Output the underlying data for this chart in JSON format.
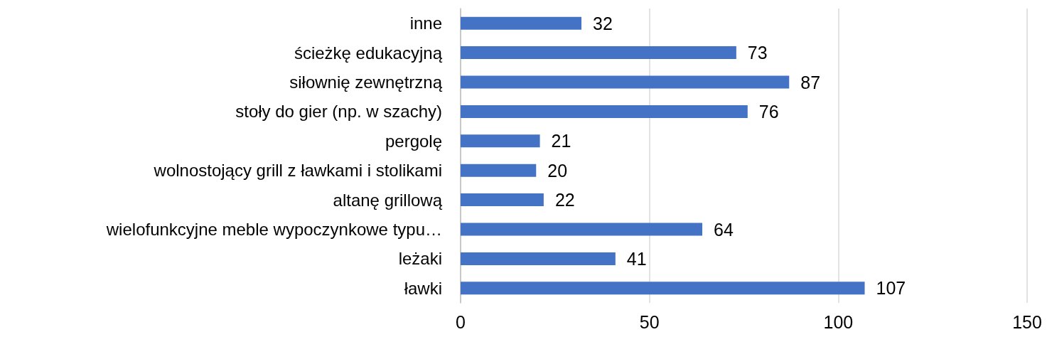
{
  "chart_data": {
    "type": "bar",
    "orientation": "horizontal",
    "categories": [
      "inne",
      "ścieżkę edukacyjną",
      "siłownię zewnętrzną",
      "stoły do gier (np. w szachy)",
      "pergolę",
      "wolnostojący grill z ławkami i stolikami",
      "altanę grillową",
      "wielofunkcyjne meble wypoczynkowe typu…",
      "leżaki",
      "ławki"
    ],
    "values": [
      32,
      73,
      87,
      76,
      21,
      20,
      22,
      64,
      41,
      107
    ],
    "color": "#4472c4",
    "xlim": [
      0,
      150
    ],
    "xticks": [
      0,
      50,
      100,
      150
    ],
    "grid": "x",
    "data_labels": true
  }
}
